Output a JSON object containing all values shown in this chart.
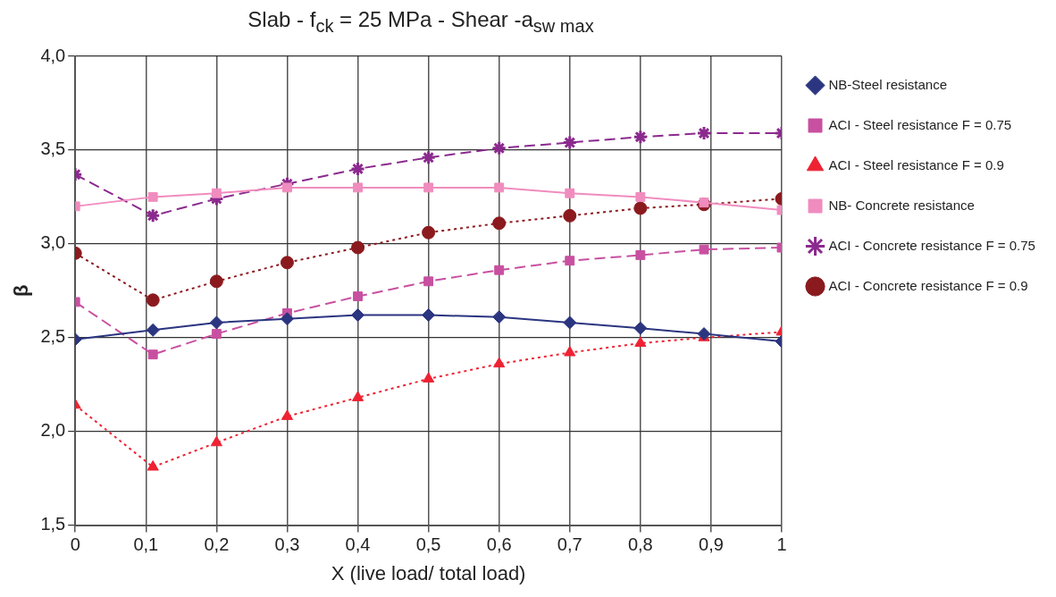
{
  "chart_data": {
    "type": "line",
    "title": "Slab - f$_{ck}$  = 25 MPa - Shear -a$_{sw max}$",
    "xlabel": "X (live load/ total load)",
    "ylabel": "β",
    "xlim": [
      0,
      1
    ],
    "xticks": [
      0,
      {
        "value": 0.1,
        "label": "0,1"
      },
      {
        "value": 0.2,
        "label": "0,2"
      },
      {
        "value": 0.3,
        "label": "0,3"
      },
      {
        "value": 0.4,
        "label": "0,4"
      },
      {
        "value": 0.5,
        "label": "0,5"
      },
      {
        "value": 0.6,
        "label": "0,6"
      },
      {
        "value": 0.7,
        "label": "0,7"
      },
      {
        "value": 0.8,
        "label": "0,8"
      },
      {
        "value": 0.9,
        "label": "0,9"
      },
      1
    ],
    "ylim": [
      1.5,
      4
    ],
    "yticks": [
      {
        "value": 1.5,
        "label": "1,5"
      },
      {
        "value": 2,
        "label": "2,0"
      },
      {
        "value": 2.5,
        "label": "2,5"
      },
      {
        "value": 3,
        "label": "3,0"
      },
      {
        "value": 3.5,
        "label": "3,5"
      },
      {
        "value": 4,
        "label": "4,0"
      }
    ],
    "grid": true,
    "legend": "right",
    "x": [
      0,
      0.11,
      0.2,
      0.3,
      0.4,
      0.5,
      0.6,
      0.7,
      0.8,
      0.89,
      1
    ],
    "series": [
      {
        "name": "NB-Steel resistance",
        "color": "#2b3580",
        "marker": "diamond",
        "line_style": "solid",
        "values": [
          2.49,
          2.54,
          2.58,
          2.6,
          2.62,
          2.62,
          2.61,
          2.58,
          2.55,
          2.52,
          2.48
        ]
      },
      {
        "name": "ACI - Steel resistance F = 0.75",
        "color": "#c850a0",
        "marker": "square",
        "line_style": "dashed",
        "values": [
          2.69,
          2.41,
          2.52,
          2.63,
          2.72,
          2.8,
          2.86,
          2.91,
          2.94,
          2.97,
          2.98
        ]
      },
      {
        "name": "ACI - Steel resistance F = 0.9",
        "color": "#ee2233",
        "marker": "triangle",
        "line_style": "dotted",
        "values": [
          2.14,
          1.81,
          1.94,
          2.08,
          2.18,
          2.28,
          2.36,
          2.42,
          2.47,
          2.5,
          2.53
        ]
      },
      {
        "name": "NB- Concrete resistance",
        "color": "#f08cbe",
        "marker": "square",
        "line_style": "solid",
        "values": [
          3.2,
          3.25,
          3.27,
          3.3,
          3.3,
          3.3,
          3.3,
          3.27,
          3.25,
          3.22,
          3.18
        ]
      },
      {
        "name": "ACI - Concrete resistance F = 0.75",
        "color": "#8b2a8e",
        "marker": "cross",
        "line_style": "dashed",
        "values": [
          3.37,
          3.15,
          3.24,
          3.32,
          3.4,
          3.46,
          3.51,
          3.54,
          3.57,
          3.59,
          3.59
        ]
      },
      {
        "name": "ACI - Concrete resistance F = 0.9",
        "color": "#8b1a1e",
        "marker": "circle",
        "line_style": "dotted",
        "values": [
          2.95,
          2.7,
          2.8,
          2.9,
          2.98,
          3.06,
          3.11,
          3.15,
          3.19,
          3.21,
          3.24
        ]
      }
    ]
  }
}
